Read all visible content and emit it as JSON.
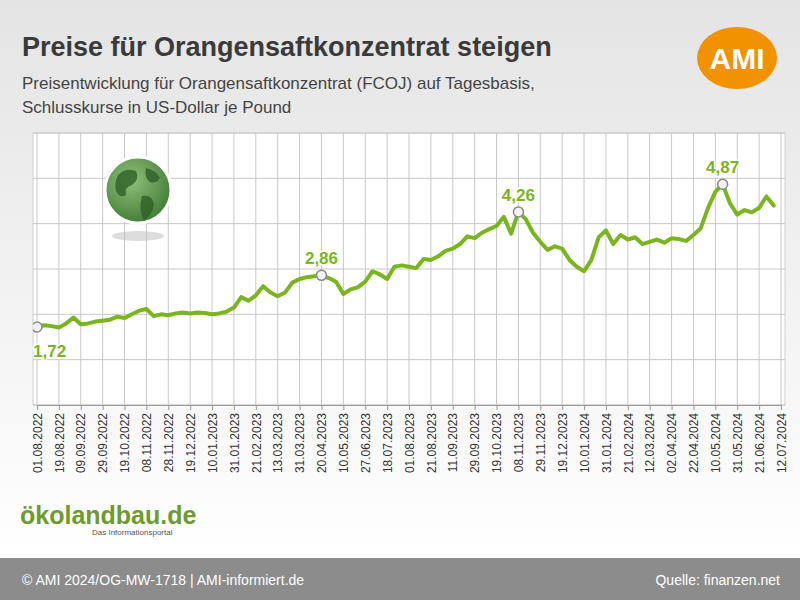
{
  "chart_data": {
    "type": "line",
    "title": "Preise für Orangensaftkonzentrat steigen",
    "subtitle": [
      "Preisentwicklung für Orangensaftkonzentrat (FCOJ) auf Tagesbasis,",
      "Schlusskurse in US-Dollar je Pound"
    ],
    "categories": [
      "01.08.2022",
      null,
      null,
      "19.08.2022",
      null,
      null,
      "09.09.2022",
      null,
      null,
      "29.09.2022",
      null,
      null,
      "19.10.2022",
      null,
      null,
      "08.11.2022",
      null,
      null,
      "28.11.2022",
      null,
      null,
      "19.12.2022",
      null,
      null,
      "10.01.2023",
      null,
      null,
      "31.01.2023",
      null,
      null,
      "21.02.2023",
      null,
      null,
      "13.03.2023",
      null,
      null,
      "31.03.2023",
      null,
      null,
      "20.04.2023",
      null,
      null,
      "10.05.2023",
      null,
      null,
      "27.06.2023",
      null,
      null,
      "18.07.2023",
      null,
      null,
      "01.08.2023",
      null,
      null,
      "21.08.2023",
      null,
      null,
      "11.09.2023",
      null,
      null,
      "29.09.2023",
      null,
      null,
      "19.10.2023",
      null,
      null,
      "08.11.2023",
      null,
      null,
      "29.11.2023",
      null,
      null,
      "19.12.2023",
      null,
      null,
      "10.01.2024",
      null,
      null,
      "31.01.2024",
      null,
      null,
      "21.02.2024",
      null,
      null,
      "12.03.2024",
      null,
      null,
      "02.04.2024",
      null,
      null,
      "22.04.2024",
      null,
      null,
      "10.05.2024",
      null,
      null,
      "31.05.2024",
      null,
      null,
      "21.06.2024",
      null,
      null,
      "12.07.2024"
    ],
    "values": [
      1.72,
      1.76,
      1.74,
      1.71,
      1.8,
      1.93,
      1.78,
      1.8,
      1.84,
      1.86,
      1.88,
      1.95,
      1.92,
      2.0,
      2.08,
      2.12,
      1.96,
      2.0,
      1.98,
      2.02,
      2.04,
      2.02,
      2.04,
      2.03,
      2.0,
      2.02,
      2.06,
      2.15,
      2.38,
      2.3,
      2.42,
      2.62,
      2.48,
      2.4,
      2.48,
      2.7,
      2.78,
      2.82,
      2.84,
      2.86,
      2.8,
      2.72,
      2.45,
      2.55,
      2.6,
      2.72,
      2.95,
      2.88,
      2.78,
      3.05,
      3.08,
      3.05,
      3.02,
      3.22,
      3.2,
      3.28,
      3.4,
      3.45,
      3.55,
      3.72,
      3.68,
      3.8,
      3.88,
      3.95,
      4.15,
      3.78,
      4.26,
      4.1,
      3.8,
      3.6,
      3.42,
      3.5,
      3.45,
      3.2,
      3.05,
      2.95,
      3.2,
      3.7,
      3.85,
      3.55,
      3.75,
      3.65,
      3.7,
      3.55,
      3.6,
      3.65,
      3.58,
      3.68,
      3.66,
      3.62,
      3.75,
      3.9,
      4.35,
      4.7,
      4.87,
      4.45,
      4.2,
      4.3,
      4.25,
      4.35,
      4.6,
      4.4,
      null
    ],
    "color": "#7ab51d",
    "ylim": [
      0,
      6
    ],
    "yticks": [
      0,
      1,
      2,
      3,
      4,
      5,
      6
    ],
    "grid": true,
    "tick_labels": "x",
    "annotations": [
      {
        "text": "1,72",
        "index": 0,
        "value": 1.72
      },
      {
        "text": "2,86",
        "index": 39,
        "value": 2.86
      },
      {
        "text": "4,26",
        "index": 66,
        "value": 4.26
      },
      {
        "text": "4,87",
        "index": 94,
        "value": 4.87
      }
    ],
    "logo": "AMI",
    "partner": "ökolandbau.de",
    "partner_tagline": "Das Informationsportal",
    "footer": "© AMI 2024/OG-MW-1718 | AMI-informiert.de",
    "source": "Quelle: finanzen.net"
  }
}
